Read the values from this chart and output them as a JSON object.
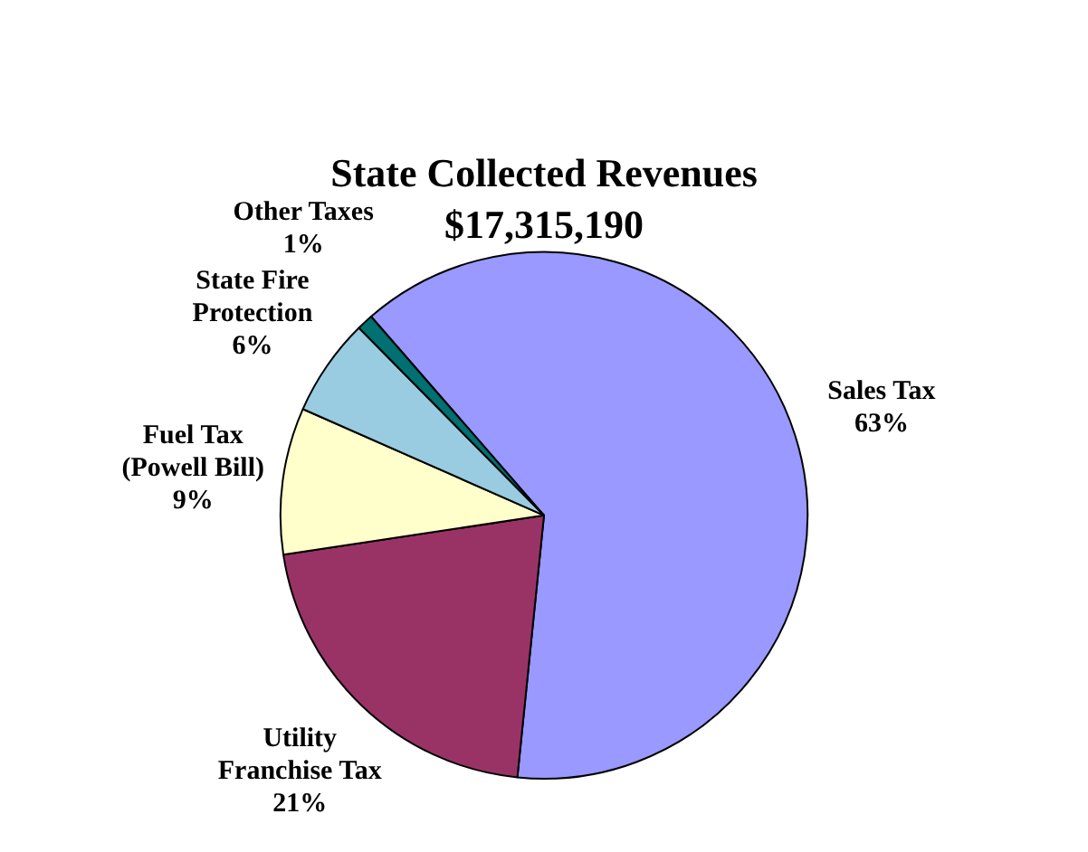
{
  "chart_data": {
    "type": "pie",
    "title": "State Collected Revenues",
    "subtitle": "$17,315,190",
    "categories": [
      "Sales Tax",
      "Utility Franchise Tax",
      "Fuel Tax (Powell Bill)",
      "State Fire Protection",
      "Other Taxes"
    ],
    "values": [
      63,
      21,
      9,
      6,
      1
    ],
    "value_labels": [
      "63%",
      "21%",
      "9%",
      "6%",
      "1%"
    ],
    "colors": [
      "#9999ff",
      "#993366",
      "#ffffcc",
      "#99cce0",
      "#007070"
    ],
    "legend": false
  }
}
